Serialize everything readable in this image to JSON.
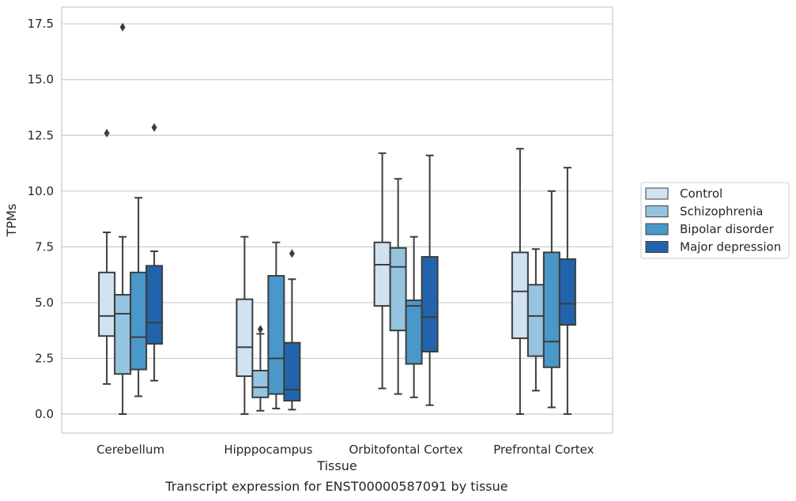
{
  "caption": "Transcript expression for ENST00000587091 by tissue",
  "chart_data": {
    "type": "box",
    "xlabel": "Tissue",
    "ylabel": "TPMs",
    "ylim": [
      -0.85,
      18.25
    ],
    "yticks": [
      0.0,
      2.5,
      5.0,
      7.5,
      10.0,
      12.5,
      15.0,
      17.5
    ],
    "ytick_labels": [
      "0.0",
      "2.5",
      "5.0",
      "7.5",
      "10.0",
      "12.5",
      "15.0",
      "17.5"
    ],
    "grid": "horizontal",
    "legend_position": "right",
    "categories": [
      "Cerebellum",
      "Hipppocampus",
      "Orbitofontal Cortex",
      "Prefrontal Cortex"
    ],
    "series": [
      {
        "name": "Control",
        "color": "#d0e1f2",
        "boxes": [
          {
            "whislo": 1.35,
            "q1": 3.5,
            "med": 4.4,
            "q3": 6.35,
            "whishi": 8.15,
            "fliers": [
              12.6
            ]
          },
          {
            "whislo": 0.0,
            "q1": 1.7,
            "med": 3.0,
            "q3": 5.15,
            "whishi": 7.95,
            "fliers": []
          },
          {
            "whislo": 1.15,
            "q1": 4.85,
            "med": 6.7,
            "q3": 7.7,
            "whishi": 11.7,
            "fliers": []
          },
          {
            "whislo": 0.0,
            "q1": 3.4,
            "med": 5.5,
            "q3": 7.25,
            "whishi": 11.9,
            "fliers": []
          }
        ]
      },
      {
        "name": "Schizophrenia",
        "color": "#94c4df",
        "boxes": [
          {
            "whislo": 0.0,
            "q1": 1.8,
            "med": 4.5,
            "q3": 5.35,
            "whishi": 7.95,
            "fliers": [
              17.35
            ]
          },
          {
            "whislo": 0.15,
            "q1": 0.75,
            "med": 1.2,
            "q3": 1.95,
            "whishi": 3.6,
            "fliers": [
              3.8
            ]
          },
          {
            "whislo": 0.9,
            "q1": 3.75,
            "med": 6.6,
            "q3": 7.45,
            "whishi": 10.55,
            "fliers": []
          },
          {
            "whislo": 1.05,
            "q1": 2.6,
            "med": 4.4,
            "q3": 5.8,
            "whishi": 7.4,
            "fliers": []
          }
        ]
      },
      {
        "name": "Bipolar disorder",
        "color": "#4a98c9",
        "boxes": [
          {
            "whislo": 0.8,
            "q1": 2.0,
            "med": 3.45,
            "q3": 6.35,
            "whishi": 9.7,
            "fliers": []
          },
          {
            "whislo": 0.25,
            "q1": 0.9,
            "med": 2.5,
            "q3": 6.2,
            "whishi": 7.7,
            "fliers": []
          },
          {
            "whislo": 0.75,
            "q1": 2.25,
            "med": 4.85,
            "q3": 5.1,
            "whishi": 7.95,
            "fliers": []
          },
          {
            "whislo": 0.3,
            "q1": 2.1,
            "med": 3.25,
            "q3": 7.25,
            "whishi": 10.0,
            "fliers": []
          }
        ]
      },
      {
        "name": "Major depression",
        "color": "#2164ab",
        "boxes": [
          {
            "whislo": 1.5,
            "q1": 3.15,
            "med": 4.1,
            "q3": 6.65,
            "whishi": 7.3,
            "fliers": [
              12.85
            ]
          },
          {
            "whislo": 0.2,
            "q1": 0.6,
            "med": 1.1,
            "q3": 3.2,
            "whishi": 6.05,
            "fliers": [
              7.2
            ]
          },
          {
            "whislo": 0.4,
            "q1": 2.8,
            "med": 4.35,
            "q3": 7.05,
            "whishi": 11.6,
            "fliers": []
          },
          {
            "whislo": 0.0,
            "q1": 4.0,
            "med": 4.95,
            "q3": 6.95,
            "whishi": 11.05,
            "fliers": []
          }
        ]
      }
    ]
  }
}
